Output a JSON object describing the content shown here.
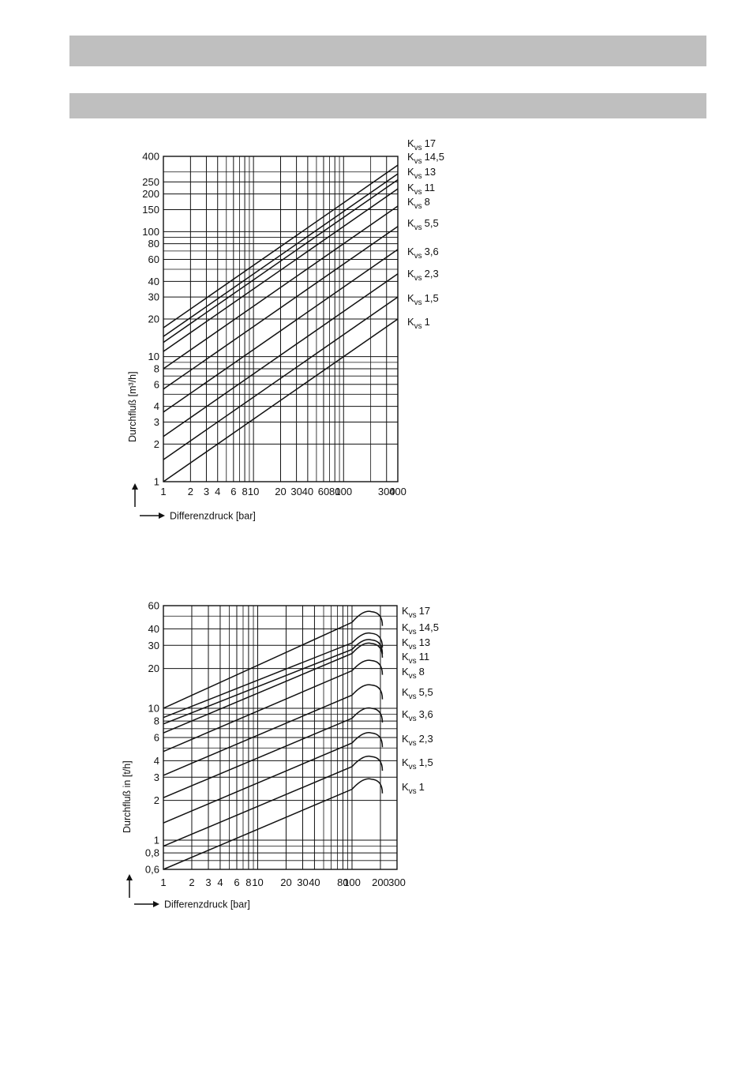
{
  "header_bars": [
    {
      "text": ""
    },
    {
      "text": ""
    }
  ],
  "chart_data": [
    {
      "type": "line",
      "xscale": "log",
      "yscale": "log",
      "xlabel": "Differenzdruck [bar]",
      "ylabel": "Durchfluß [m³/h]",
      "xlim": [
        1,
        400
      ],
      "ylim": [
        1,
        400
      ],
      "x_ticks": [
        "1",
        "2",
        "3",
        "4",
        "6",
        "8",
        "10",
        "20",
        "30",
        "40",
        "60",
        "80",
        "100",
        "300",
        "400"
      ],
      "x_tick_values": [
        1,
        2,
        3,
        4,
        6,
        8,
        10,
        20,
        30,
        40,
        60,
        80,
        100,
        300,
        400
      ],
      "y_ticks": [
        "1",
        "2",
        "3",
        "4",
        "6",
        "8",
        "10",
        "20",
        "30",
        "40",
        "60",
        "80",
        "100",
        "150",
        "200",
        "250",
        "400"
      ],
      "y_tick_values": [
        1,
        2,
        3,
        4,
        6,
        8,
        10,
        20,
        30,
        40,
        60,
        80,
        100,
        150,
        200,
        250,
        400
      ],
      "grid": true,
      "series": [
        {
          "name": "17",
          "kvs": 17,
          "x": [
            1,
            400
          ],
          "y": [
            17,
            340
          ]
        },
        {
          "name": "14,5",
          "kvs": 14.5,
          "x": [
            1,
            400
          ],
          "y": [
            14.5,
            290
          ]
        },
        {
          "name": "13",
          "kvs": 13,
          "x": [
            1,
            400
          ],
          "y": [
            13,
            260
          ]
        },
        {
          "name": "11",
          "kvs": 11,
          "x": [
            1,
            400
          ],
          "y": [
            11,
            220
          ]
        },
        {
          "name": "8",
          "kvs": 8,
          "x": [
            1,
            400
          ],
          "y": [
            8,
            160
          ]
        },
        {
          "name": "5,5",
          "kvs": 5.5,
          "x": [
            1,
            400
          ],
          "y": [
            5.5,
            110
          ]
        },
        {
          "name": "3,6",
          "kvs": 3.6,
          "x": [
            1,
            400
          ],
          "y": [
            3.6,
            72
          ]
        },
        {
          "name": "2,3",
          "kvs": 2.3,
          "x": [
            1,
            400
          ],
          "y": [
            2.3,
            46
          ]
        },
        {
          "name": "1,5",
          "kvs": 1.5,
          "x": [
            1,
            400
          ],
          "y": [
            1.5,
            30
          ]
        },
        {
          "name": "1",
          "kvs": 1,
          "x": [
            1,
            400
          ],
          "y": [
            1,
            20
          ]
        }
      ]
    },
    {
      "type": "line",
      "xscale": "log",
      "yscale": "log",
      "xlabel": "Differenzdruck [bar]",
      "ylabel": "Durchfluß in [t/h]",
      "xlim": [
        1,
        300
      ],
      "ylim": [
        0.6,
        60
      ],
      "x_ticks": [
        "1",
        "2",
        "3",
        "4",
        "6",
        "8",
        "10",
        "20",
        "30",
        "40",
        "80",
        "100",
        "200",
        "300"
      ],
      "x_tick_values": [
        1,
        2,
        3,
        4,
        6,
        8,
        10,
        20,
        30,
        40,
        80,
        100,
        200,
        300
      ],
      "y_ticks": [
        "0,6",
        "0,8",
        "1",
        "2",
        "3",
        "4",
        "6",
        "8",
        "10",
        "20",
        "30",
        "40",
        "60"
      ],
      "y_tick_values": [
        0.6,
        0.8,
        1,
        2,
        3,
        4,
        6,
        8,
        10,
        20,
        30,
        40,
        60
      ],
      "grid": true,
      "curve_peak_x": 160,
      "curve_end_x": 210,
      "series": [
        {
          "name": "17",
          "kvs": 17,
          "x": [
            1,
            160
          ],
          "y": [
            10,
            54
          ]
        },
        {
          "name": "14,5",
          "kvs": 14.5,
          "x": [
            1,
            160
          ],
          "y": [
            8.5,
            37
          ]
        },
        {
          "name": "13",
          "kvs": 13,
          "x": [
            1,
            160
          ],
          "y": [
            7.6,
            33
          ]
        },
        {
          "name": "11",
          "kvs": 11,
          "x": [
            1,
            160
          ],
          "y": [
            6.5,
            31
          ]
        },
        {
          "name": "8",
          "kvs": 8,
          "x": [
            1,
            160
          ],
          "y": [
            4.7,
            23
          ]
        },
        {
          "name": "5,5",
          "kvs": 5.5,
          "x": [
            1,
            160
          ],
          "y": [
            3.1,
            15
          ]
        },
        {
          "name": "3,6",
          "kvs": 3.6,
          "x": [
            1,
            160
          ],
          "y": [
            2.1,
            10
          ]
        },
        {
          "name": "2,3",
          "kvs": 2.3,
          "x": [
            1,
            160
          ],
          "y": [
            1.35,
            6.5
          ]
        },
        {
          "name": "1,5",
          "kvs": 1.5,
          "x": [
            1,
            160
          ],
          "y": [
            0.9,
            4.3
          ]
        },
        {
          "name": "1",
          "kvs": 1,
          "x": [
            1,
            160
          ],
          "y": [
            0.6,
            2.9
          ]
        }
      ]
    }
  ],
  "legend_prefix": "K",
  "legend_sub": "vs"
}
